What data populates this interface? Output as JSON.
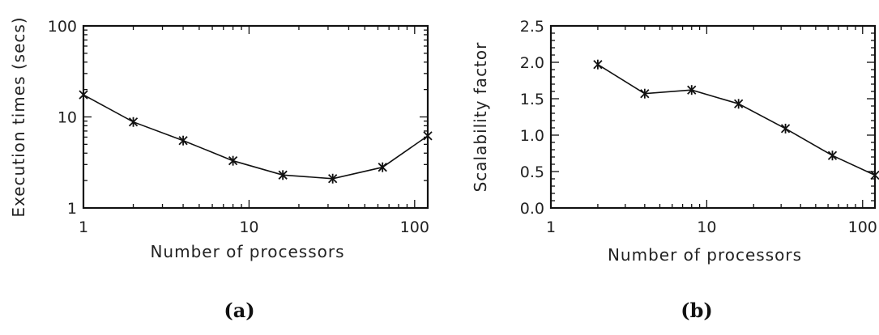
{
  "chart_data": [
    {
      "type": "line",
      "panel_label": "(a)",
      "xlabel": "Number of processors",
      "ylabel": "Execution times (secs)",
      "xscale": "log",
      "yscale": "log",
      "xlim": [
        1,
        120
      ],
      "ylim": [
        1,
        100
      ],
      "xticks": [
        1,
        10,
        100
      ],
      "xtick_labels": [
        "1",
        "10",
        "100"
      ],
      "yticks": [
        1,
        10,
        100
      ],
      "ytick_labels": [
        "1",
        "10",
        "100"
      ],
      "grid": false,
      "series": [
        {
          "x": [
            1,
            2,
            4,
            8,
            16,
            32,
            64,
            120
          ],
          "y": [
            17.5,
            8.8,
            5.5,
            3.3,
            2.3,
            2.1,
            2.8,
            6.2
          ],
          "marker": "x"
        }
      ]
    },
    {
      "type": "line",
      "panel_label": "(b)",
      "xlabel": "Number of processors",
      "ylabel": "Scalability factor",
      "xscale": "log",
      "yscale": "linear",
      "xlim": [
        1,
        120
      ],
      "ylim": [
        0,
        2.5
      ],
      "xticks": [
        1,
        10,
        100
      ],
      "xtick_labels": [
        "1",
        "10",
        "100"
      ],
      "yticks": [
        0,
        0.5,
        1,
        1.5,
        2,
        2.5
      ],
      "ytick_labels": [
        "0.0",
        "0.5",
        "1.0",
        "1.5",
        "2.0",
        "2.5"
      ],
      "grid": false,
      "series": [
        {
          "x": [
            2,
            4,
            8,
            16,
            32,
            64,
            120
          ],
          "y": [
            1.97,
            1.57,
            1.62,
            1.43,
            1.09,
            0.72,
            0.45
          ],
          "marker": "x"
        }
      ]
    }
  ]
}
